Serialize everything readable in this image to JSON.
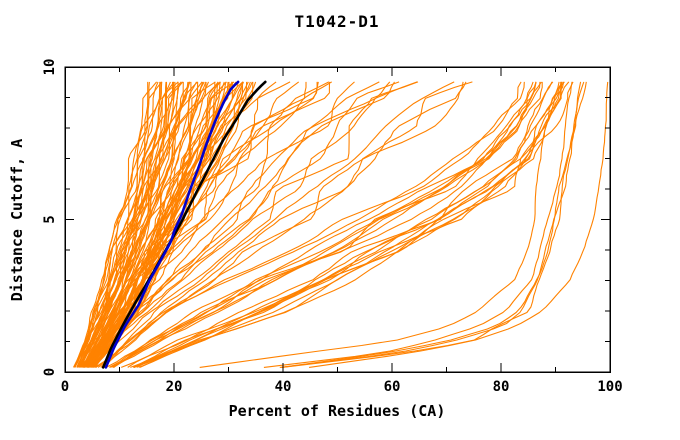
{
  "chart_data": {
    "type": "line",
    "title": "T1042-D1",
    "xlabel": "Percent of Residues (CA)",
    "ylabel": "Distance Cutoff, A",
    "xlim": [
      0,
      100
    ],
    "ylim": [
      0,
      10
    ],
    "x_major_ticks": [
      0,
      20,
      40,
      60,
      80,
      100
    ],
    "x_minor_step": 10,
    "y_major_ticks": [
      0,
      5,
      10
    ],
    "y_minor_step": 1,
    "grid": false,
    "legend": "none",
    "frame_color": "#000000",
    "background_color": "#ffffff",
    "series": [
      {
        "name": "reference-curve-black",
        "color": "#000000",
        "width": 2.6,
        "points": [
          [
            7,
            0.15
          ],
          [
            8.5,
            0.8
          ],
          [
            10.5,
            1.5
          ],
          [
            13,
            2.3
          ],
          [
            16,
            3.2
          ],
          [
            18.5,
            4.0
          ],
          [
            21,
            4.8
          ],
          [
            23,
            5.5
          ],
          [
            25,
            6.2
          ],
          [
            27,
            6.9
          ],
          [
            29,
            7.6
          ],
          [
            31.5,
            8.3
          ],
          [
            33.5,
            8.9
          ],
          [
            35.5,
            9.3
          ],
          [
            37,
            9.55
          ]
        ]
      },
      {
        "name": "reference-curve-blue",
        "color": "#0000cc",
        "width": 2.6,
        "points": [
          [
            7.5,
            0.15
          ],
          [
            9,
            0.8
          ],
          [
            11,
            1.5
          ],
          [
            13.5,
            2.2
          ],
          [
            15.5,
            3.0
          ],
          [
            18,
            3.8
          ],
          [
            19.5,
            4.3
          ],
          [
            20,
            4.6
          ],
          [
            21.5,
            5.2
          ],
          [
            23,
            6.0
          ],
          [
            24.5,
            6.7
          ],
          [
            26,
            7.5
          ],
          [
            27.5,
            8.2
          ],
          [
            29,
            8.8
          ],
          [
            30.5,
            9.3
          ],
          [
            32,
            9.55
          ]
        ]
      }
    ],
    "ensemble": {
      "name": "prediction-curves",
      "color": "#ff8200",
      "width": 1.1,
      "seed": 1042,
      "y_top": 9.55,
      "groups": [
        {
          "name": "main-band",
          "count": 64,
          "skew": 1,
          "wiggle": 0.35,
          "levels": [
            [
              0.15,
              1.5,
              5.5
            ],
            [
              1,
              3.5,
              9
            ],
            [
              2,
              5.5,
              13
            ],
            [
              3,
              7,
              16
            ],
            [
              4,
              8.5,
              19
            ],
            [
              5,
              10,
              22
            ],
            [
              6,
              11.5,
              25
            ],
            [
              7,
              12.5,
              28
            ],
            [
              8,
              13.5,
              30.5
            ],
            [
              9,
              14.5,
              33
            ],
            [
              9.55,
              15,
              34.5
            ]
          ]
        },
        {
          "name": "middle-fan",
          "count": 20,
          "skew": 1,
          "wiggle": 0.7,
          "levels": [
            [
              0.15,
              2.5,
              7
            ],
            [
              1,
              5,
              12
            ],
            [
              2,
              8,
              20
            ],
            [
              3,
              11,
              28
            ],
            [
              4,
              14,
              36
            ],
            [
              5,
              17,
              44
            ],
            [
              6,
              20,
              52
            ],
            [
              7,
              24,
              60
            ],
            [
              8,
              28,
              67
            ],
            [
              9,
              33,
              74
            ],
            [
              9.55,
              36,
              78
            ]
          ]
        },
        {
          "name": "right-cluster",
          "count": 19,
          "skew": 0.55,
          "wiggle": 0.7,
          "levels": [
            [
              0.15,
              4,
              14
            ],
            [
              1,
              9,
              26
            ],
            [
              2,
              16,
              40
            ],
            [
              3,
              26,
              52
            ],
            [
              4,
              37,
              63
            ],
            [
              5,
              48,
              73
            ],
            [
              6,
              60,
              81
            ],
            [
              7,
              70,
              86
            ],
            [
              8,
              77,
              89
            ],
            [
              9,
              81,
              91.5
            ],
            [
              9.55,
              83,
              92.5
            ]
          ]
        },
        {
          "name": "top-models",
          "count": 5,
          "skew": 1,
          "wiggle": 0.3,
          "levels": [
            [
              0.15,
              20,
              42
            ],
            [
              0.6,
              42,
              62
            ],
            [
              1,
              56,
              74
            ],
            [
              1.5,
              68,
              81
            ],
            [
              2,
              75,
              85
            ],
            [
              3,
              81,
              88
            ],
            [
              4,
              84,
              89.5
            ],
            [
              5,
              85.5,
              90.5
            ],
            [
              6,
              86.5,
              91.5
            ],
            [
              8,
              88,
              93.5
            ],
            [
              9.55,
              89.5,
              95.5
            ]
          ]
        },
        {
          "name": "best-model",
          "count": 1,
          "skew": 1,
          "wiggle": 0.15,
          "levels": [
            [
              0.15,
              44,
              48
            ],
            [
              0.6,
              62,
              66
            ],
            [
              1,
              74,
              78
            ],
            [
              1.5,
              82,
              85
            ],
            [
              2,
              87,
              89
            ],
            [
              3,
              92.5,
              93.5
            ],
            [
              4,
              95,
              95.8
            ],
            [
              5,
              96.8,
              97.3
            ],
            [
              6,
              97.9,
              98.3
            ],
            [
              7,
              98.7,
              99
            ],
            [
              8,
              99.2,
              99.4
            ],
            [
              9.55,
              99.6,
              99.9
            ]
          ]
        }
      ]
    }
  }
}
